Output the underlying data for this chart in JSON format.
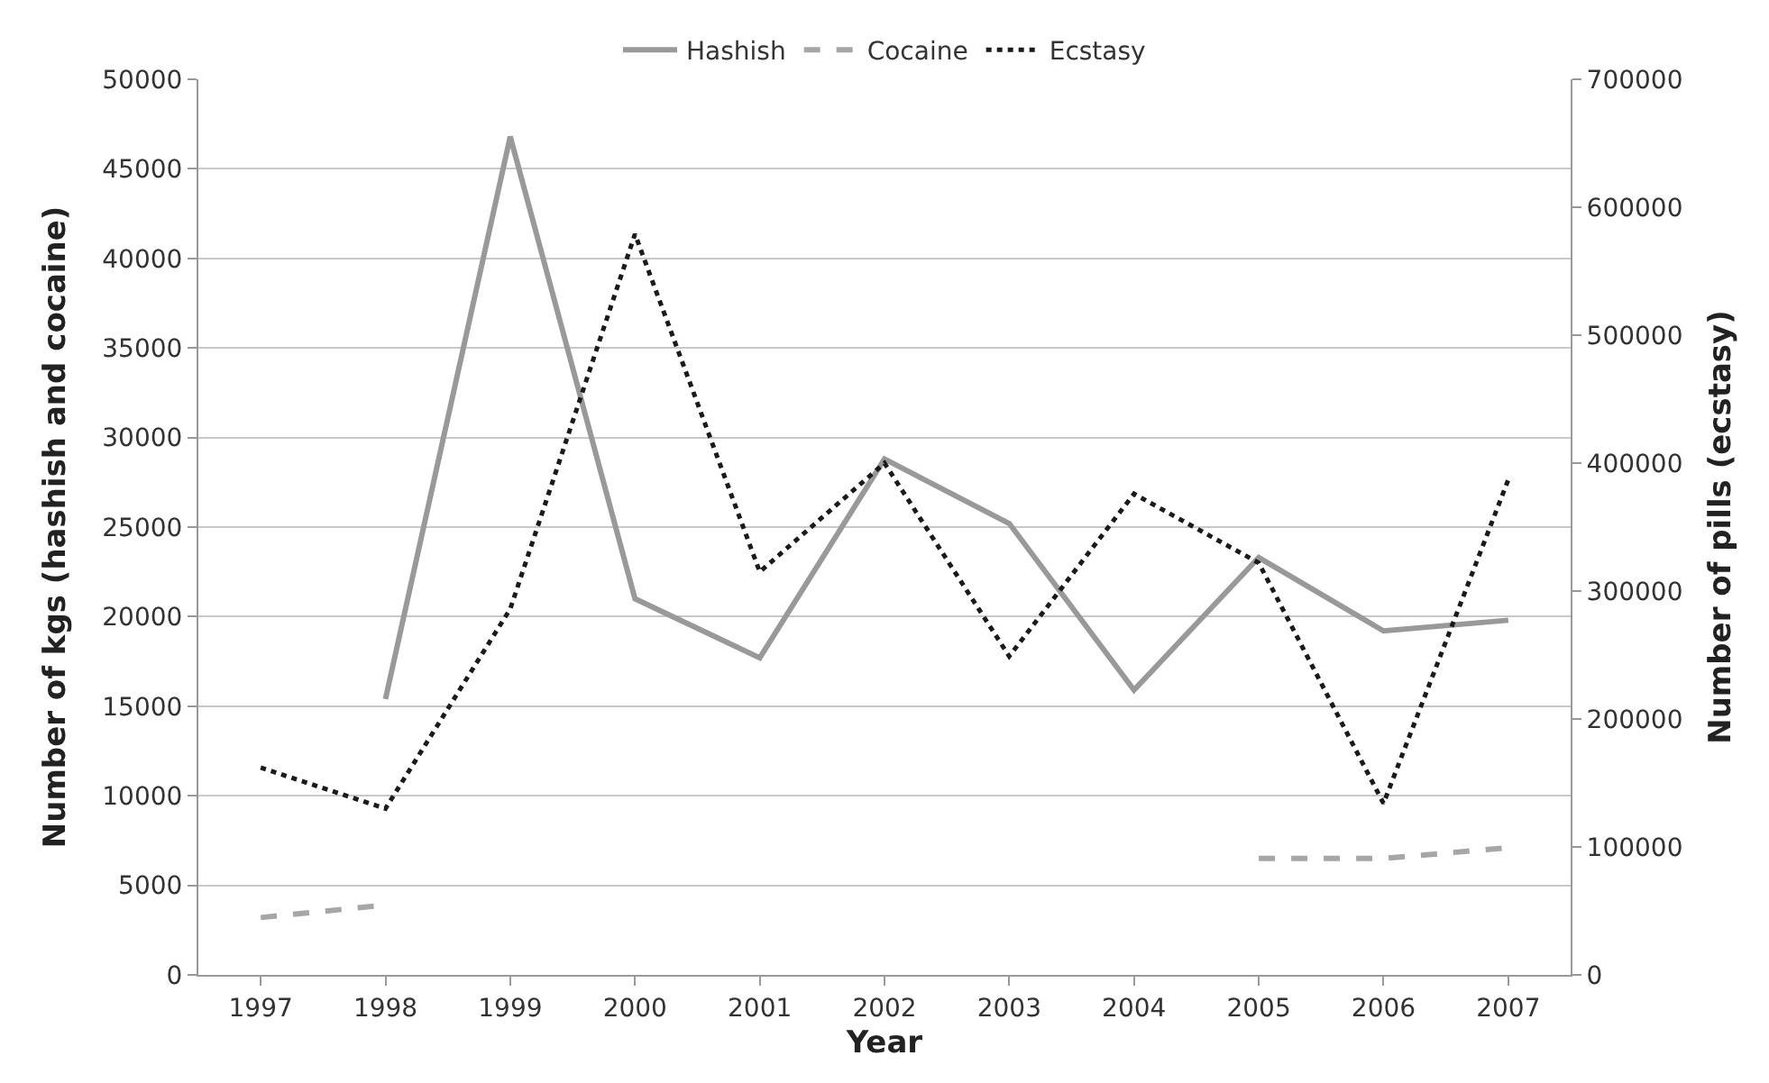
{
  "chart_data": {
    "type": "line",
    "xlabel": "Year",
    "ylabel": "Number of kgs (hashish and cocaine)",
    "y2label": "Number of pills (ecstasy)",
    "categories": [
      "1997",
      "1998",
      "1999",
      "2000",
      "2001",
      "2002",
      "2003",
      "2004",
      "2005",
      "2006",
      "2007"
    ],
    "series": [
      {
        "name": "Hashish",
        "color": "#999999",
        "line_style": "solid",
        "values": [
          null,
          15400,
          46800,
          21000,
          17700,
          28800,
          25200,
          15900,
          23300,
          19200,
          19800
        ]
      },
      {
        "name": "Cocaine",
        "color": "#a6a6a6",
        "line_style": "dashed",
        "values": [
          3200,
          3900,
          null,
          null,
          null,
          null,
          null,
          null,
          6500,
          6500,
          7100
        ]
      },
      {
        "name": "Ecstasy",
        "color": "#1a1a1a",
        "line_style": "dotted",
        "axis": "y2",
        "values": [
          162000,
          130000,
          286000,
          579000,
          315000,
          400000,
          249000,
          376000,
          322000,
          134000,
          387000
        ]
      }
    ],
    "ylim": [
      0,
      50000
    ],
    "yticks": [
      0,
      5000,
      10000,
      15000,
      20000,
      25000,
      30000,
      35000,
      40000,
      45000,
      50000
    ],
    "y2lim": [
      0,
      700000
    ],
    "y2ticks": [
      0,
      100000,
      200000,
      300000,
      400000,
      500000,
      600000,
      700000
    ],
    "grid": "y",
    "legend": "top",
    "marker": "none"
  }
}
